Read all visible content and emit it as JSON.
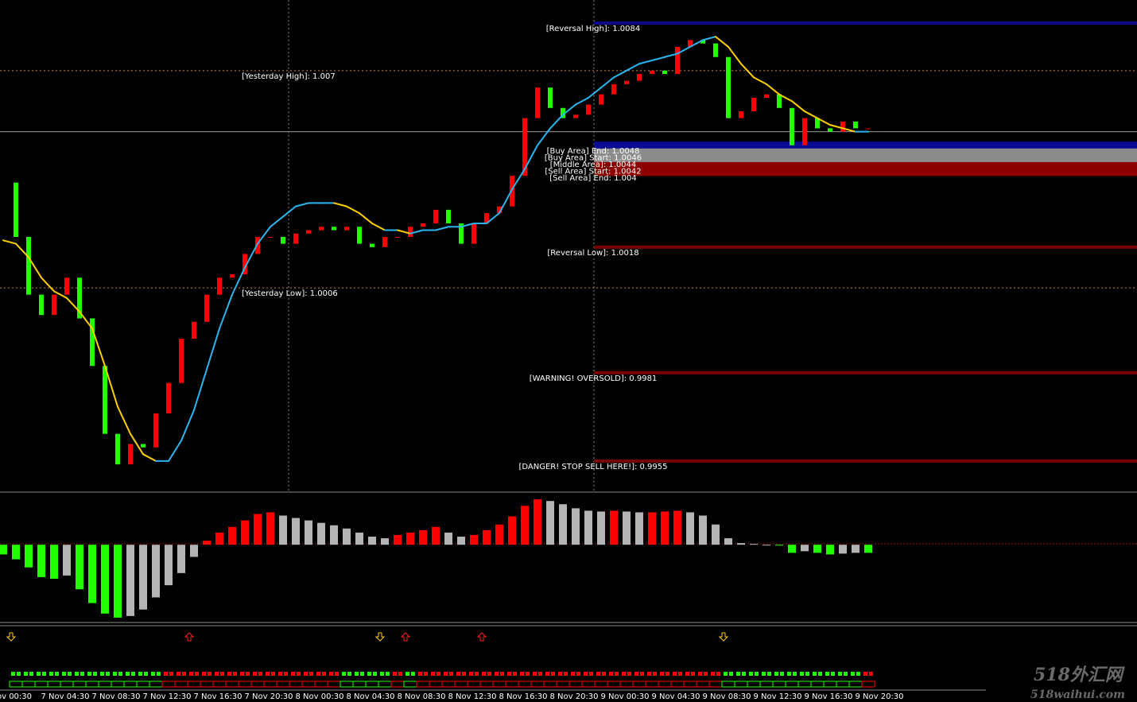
{
  "chart_data": {
    "type": "candlestick",
    "categories": [
      "ov 00:30",
      null,
      null,
      null,
      "7 Nov 04:30",
      null,
      null,
      null,
      "7 Nov 08:30",
      null,
      null,
      null,
      "7 Nov 12:30",
      null,
      null,
      null,
      "7 Nov 16:30",
      null,
      null,
      null,
      "7 Nov 20:30",
      null,
      null,
      null,
      "8 Nov 00:30",
      null,
      null,
      null,
      "8 Nov 04:30",
      null,
      null,
      null,
      "8 Nov 08:30",
      null,
      null,
      null,
      "8 Nov 12:30",
      null,
      null,
      null,
      "8 Nov 16:30",
      null,
      null,
      null,
      "8 Nov 20:30",
      null,
      null,
      null,
      "9 Nov 00:30",
      null,
      null,
      null,
      "9 Nov 04:30",
      null,
      null,
      null,
      "9 Nov 08:30",
      null,
      null,
      null,
      "9 Nov 12:30",
      null,
      null,
      null,
      "9 Nov 16:30",
      null,
      null,
      null,
      "9 Nov 20:30"
    ],
    "close": [
      1.0037,
      1.0021,
      1.0004,
      0.9998,
      1.0004,
      1.0009,
      0.9997,
      0.9983,
      0.9963,
      0.9954,
      0.996,
      0.9959,
      0.9969,
      0.9978,
      0.9991,
      0.9996,
      1.0004,
      1.0009,
      1.001,
      1.0016,
      1.0021,
      1.0021,
      1.0019,
      1.0022,
      1.0023,
      1.0024,
      1.0023,
      1.0024,
      1.0019,
      1.0018,
      1.0021,
      1.0021,
      1.0024,
      1.0025,
      1.0029,
      1.0025,
      1.0019,
      1.0025,
      1.0028,
      1.003,
      1.0039,
      1.0056,
      1.0065,
      1.0059,
      1.0056,
      1.0057,
      1.006,
      1.0063,
      1.0066,
      1.0067,
      1.0069,
      1.007,
      1.0069,
      1.0077,
      1.0079,
      1.0078,
      1.0074,
      1.0056,
      1.0058,
      1.0062,
      1.0063,
      1.0059,
      1.0048,
      1.0056,
      1.0053,
      1.0052,
      1.0055,
      1.0053,
      1.0053
    ],
    "ma": [
      1.002,
      1.0019,
      1.0015,
      1.0009,
      1.0005,
      1.0003,
      0.9999,
      0.9994,
      0.9983,
      0.9971,
      0.9963,
      0.9957,
      0.9955,
      0.9955,
      0.9961,
      0.997,
      0.9982,
      0.9994,
      1.0004,
      1.0012,
      1.0019,
      1.0024,
      1.0027,
      1.003,
      1.0031,
      1.0031,
      1.0031,
      1.003,
      1.0028,
      1.0025,
      1.0023,
      1.0023,
      1.0022,
      1.0023,
      1.0023,
      1.0024,
      1.0024,
      1.0025,
      1.0025,
      1.0028,
      1.0035,
      1.0041,
      1.0048,
      1.0053,
      1.0057,
      1.006,
      1.0062,
      1.0065,
      1.0068,
      1.007,
      1.0072,
      1.0073,
      1.0074,
      1.0075,
      1.0077,
      1.0079,
      1.008,
      1.0077,
      1.0072,
      1.0068,
      1.0066,
      1.0063,
      1.0061,
      1.0058,
      1.0056,
      1.0054,
      1.0053,
      1.0052,
      1.0052
    ],
    "histogram": [
      -12,
      -18,
      -28,
      -40,
      -42,
      -38,
      -55,
      -72,
      -85,
      -90,
      -88,
      -80,
      -65,
      -50,
      -35,
      -15,
      5,
      15,
      22,
      30,
      38,
      40,
      36,
      33,
      30,
      27,
      24,
      20,
      15,
      10,
      8,
      12,
      15,
      18,
      22,
      15,
      10,
      12,
      18,
      25,
      35,
      48,
      56,
      54,
      50,
      45,
      42,
      41,
      42,
      41,
      40,
      40,
      41,
      42,
      40,
      36,
      25,
      8,
      2,
      1,
      0,
      -1,
      -10,
      -8,
      -10,
      -12,
      -11,
      -10,
      -10
    ],
    "ylim": [
      0.99463,
      1.00908
    ],
    "hist_ylim": [
      -95,
      62
    ],
    "current_price": 1.0052,
    "levels": [
      {
        "label": "[Reversal High]: 1.0084",
        "value": 1.0084,
        "color": "#0a0a8c",
        "style": "solid"
      },
      {
        "label": "[Yesterday High]: 1.007",
        "value": 1.007,
        "color": "#c8843c",
        "style": "dotted"
      },
      {
        "label": "[Buy Area] End: 1.0048",
        "value": 1.0048,
        "color": "#0a0a96",
        "style": "solid"
      },
      {
        "label": "[Buy Area] Start: 1.0046",
        "value": 1.0046,
        "color": "#8c8c8c",
        "style": "solid"
      },
      {
        "label": "[Middle Area]: 1.0044",
        "value": 1.0044,
        "color": "#8c8c8c",
        "style": "solid"
      },
      {
        "label": "[Sell Area] Start: 1.0042",
        "value": 1.0042,
        "color": "#8c0000",
        "style": "solid"
      },
      {
        "label": "[Sell Area] End: 1.004",
        "value": 1.004,
        "color": "#8c0000",
        "style": "solid"
      },
      {
        "label": "[Reversal Low]: 1.0018",
        "value": 1.0018,
        "color": "#7a0000",
        "style": "solid"
      },
      {
        "label": "[Yesterday Low]: 1.0006",
        "value": 1.0006,
        "color": "#c8843c",
        "style": "dotted"
      },
      {
        "label": "[WARNING! OVERSOLD]: 0.9981",
        "value": 0.9981,
        "color": "#7a0000",
        "style": "solid"
      },
      {
        "label": "[DANGER! STOP SELL HERE!]: 0.9955",
        "value": 0.9955,
        "color": "#7a0000",
        "style": "solid"
      }
    ],
    "signals": [
      {
        "bar": 0,
        "dir": "down"
      },
      {
        "bar": 14,
        "dir": "up"
      },
      {
        "bar": 29,
        "dir": "down"
      },
      {
        "bar": 31,
        "dir": "up"
      },
      {
        "bar": 37,
        "dir": "up"
      },
      {
        "bar": 56,
        "dir": "down"
      }
    ],
    "colors": {
      "up": "#ff0000",
      "down": "#22ff00",
      "ma_up": "#2bb5f0",
      "ma_down": "#ffd000",
      "hist_flat": "#b4b4b4",
      "signal_up": "#ff2020",
      "signal_down": "#ffd000"
    }
  },
  "watermark": {
    "brand": "518外汇网",
    "site": "518waihui.com"
  }
}
